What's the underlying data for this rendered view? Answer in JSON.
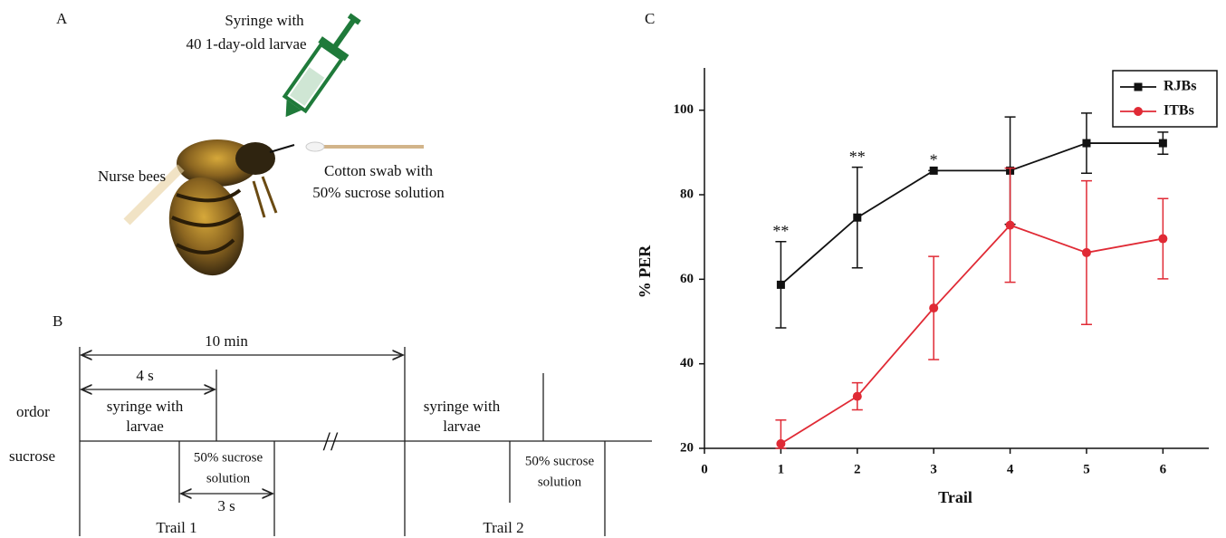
{
  "panel_a": {
    "letter": "A",
    "syringe_label": [
      "Syringe with",
      "40 1-day-old larvae"
    ],
    "bee_label": "Nurse bees",
    "swab_label": [
      "Cotton swab with",
      "50% sucrose solution"
    ]
  },
  "panel_b": {
    "letter": "B",
    "total_label": "10 min",
    "odor_time": "4 s",
    "odor_row": "ordor",
    "sucrose_row": "sucrose",
    "trail1": {
      "odor": [
        "syringe with",
        "larvae"
      ],
      "sucrose": [
        "50% sucrose",
        "solution"
      ],
      "sucrose_time": "3 s",
      "name": "Trail 1"
    },
    "break": "//",
    "trail2": {
      "odor": [
        "syringe with",
        "larvae"
      ],
      "sucrose": [
        "50% sucrose",
        "solution"
      ],
      "name": "Trail 2"
    }
  },
  "chart_data": {
    "type": "line",
    "panel_letter": "C",
    "xlabel": "Trail",
    "ylabel": "% PER",
    "xlim": [
      0,
      6.6
    ],
    "xticks": [
      0,
      1,
      2,
      3,
      4,
      5,
      6
    ],
    "ylim": [
      20,
      110
    ],
    "yticks": [
      20,
      40,
      60,
      80,
      100
    ],
    "x": [
      1,
      2,
      3,
      4,
      5,
      6
    ],
    "series": [
      {
        "name": "RJBs",
        "color": "#111111",
        "marker": "square",
        "values": [
          58.7,
          74.6,
          85.7,
          85.7,
          92.2,
          92.2
        ],
        "errors": [
          10.2,
          11.9,
          0,
          12.7,
          7.1,
          2.6
        ]
      },
      {
        "name": "ITBs",
        "color": "#e02a35",
        "marker": "circle",
        "values": [
          21.1,
          32.3,
          53.2,
          72.8,
          66.3,
          69.6
        ],
        "errors": [
          5.6,
          3.2,
          12.2,
          13.5,
          17,
          9.5
        ]
      }
    ],
    "annotations": [
      {
        "x": 1,
        "text": "**"
      },
      {
        "x": 2,
        "text": "**"
      },
      {
        "x": 3,
        "text": "*"
      },
      {
        "x": 6,
        "text": "*"
      }
    ],
    "legend": "top-right"
  }
}
